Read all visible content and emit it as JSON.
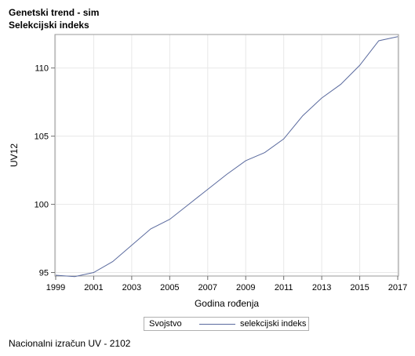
{
  "title": "Genetski trend - sim",
  "subtitle": "Selekcijski indeks",
  "footnote": "Nacionalni izračun UV - 2102",
  "legend": {
    "title": "Svojstvo",
    "series_label": "selekcijski indeks"
  },
  "chart_data": {
    "type": "line",
    "title": "Genetski trend - sim",
    "subtitle": "Selekcijski indeks",
    "xlabel": "Godina rođenja",
    "ylabel": "UV12",
    "xlim": [
      1999,
      2017
    ],
    "ylim": [
      94.8,
      112.4
    ],
    "x_ticks": [
      1999,
      2001,
      2003,
      2005,
      2007,
      2009,
      2011,
      2013,
      2015,
      2017
    ],
    "y_ticks": [
      95,
      100,
      105,
      110
    ],
    "grid": true,
    "legend_position": "bottom",
    "color": "#5a6a9e",
    "series": [
      {
        "name": "selekcijski indeks",
        "x": [
          1999,
          2000,
          2001,
          2002,
          2003,
          2004,
          2005,
          2006,
          2007,
          2008,
          2009,
          2010,
          2011,
          2012,
          2013,
          2014,
          2015,
          2016,
          2017
        ],
        "y": [
          94.8,
          94.7,
          95.0,
          95.8,
          97.0,
          98.2,
          98.9,
          100.0,
          101.1,
          102.2,
          103.2,
          103.8,
          104.8,
          106.5,
          107.8,
          108.8,
          110.2,
          112.0,
          112.3
        ]
      }
    ]
  }
}
